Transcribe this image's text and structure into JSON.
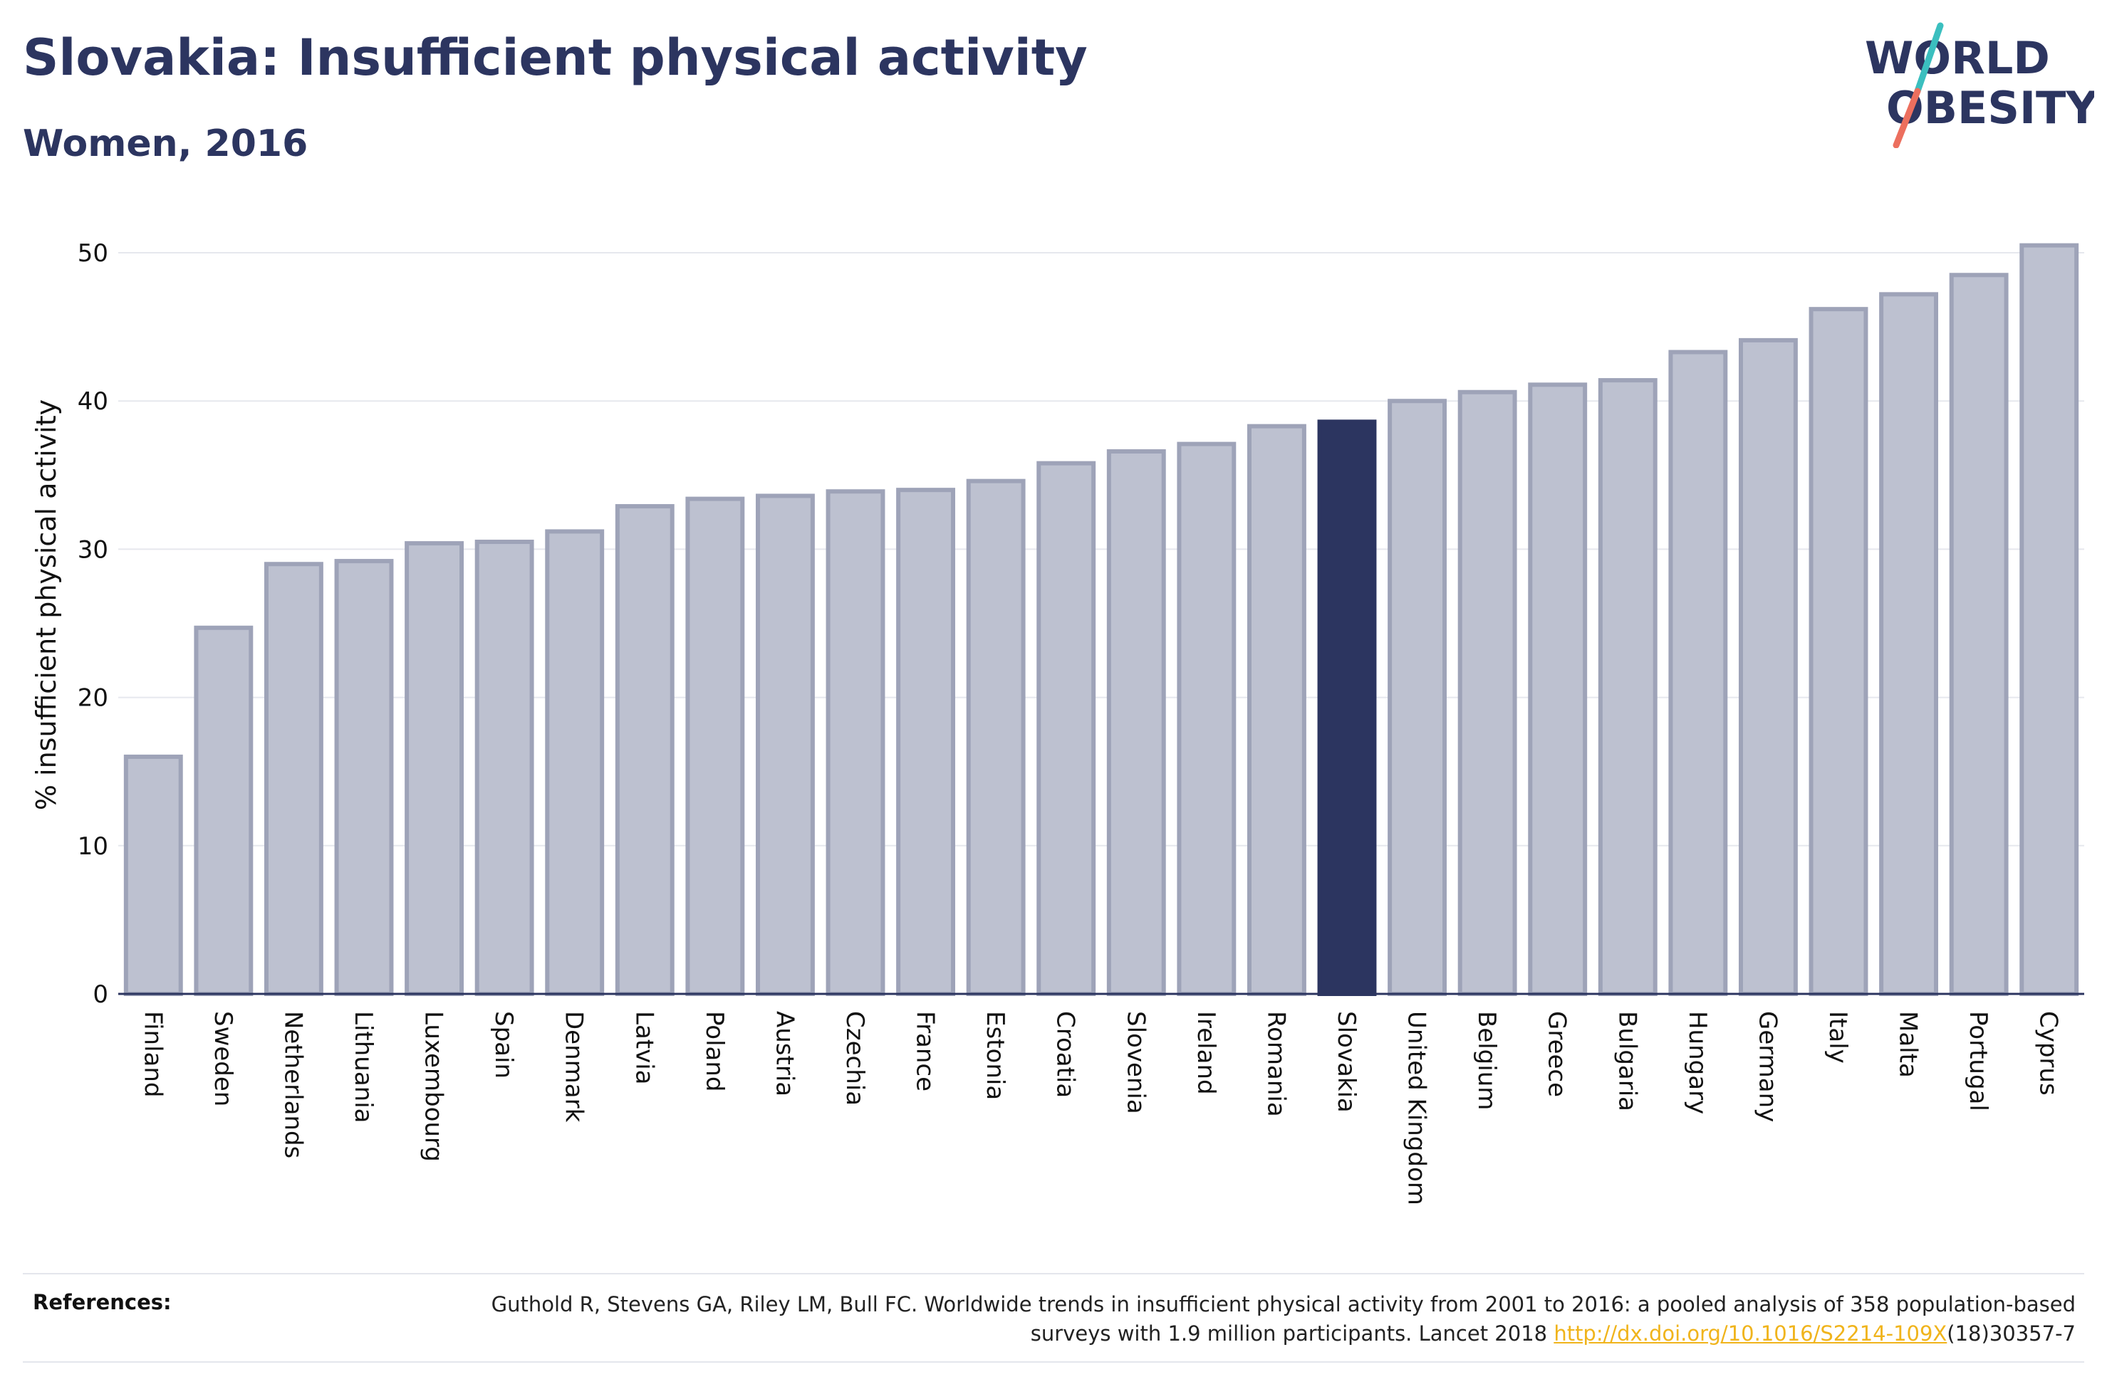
{
  "header": {
    "title": "Slovakia: Insufficient physical activity",
    "subtitle": "Women, 2016"
  },
  "logo": {
    "line1": "WORLD",
    "line2": "OBESITY"
  },
  "colors": {
    "bar": "#bdc1d0",
    "bar_stroke": "#9ea3b8",
    "highlight": "#2c3560",
    "grid": "#e6e8ee",
    "axis": "#2c3560",
    "link": "#f0b41c",
    "logo_teal": "#3bbfbf",
    "logo_coral": "#ec6f5e"
  },
  "chart_data": {
    "type": "bar",
    "ylabel": "% insufficient physical activity",
    "xlabel": "",
    "ylim": [
      0,
      52.5
    ],
    "yticks": [
      0,
      10,
      20,
      30,
      40,
      50
    ],
    "grid": true,
    "highlight": "Slovakia",
    "categories": [
      "Finland",
      "Sweden",
      "Netherlands",
      "Lithuania",
      "Luxembourg",
      "Spain",
      "Denmark",
      "Latvia",
      "Poland",
      "Austria",
      "Czechia",
      "France",
      "Estonia",
      "Croatia",
      "Slovenia",
      "Ireland",
      "Romania",
      "Slovakia",
      "United Kingdom",
      "Belgium",
      "Greece",
      "Bulgaria",
      "Hungary",
      "Germany",
      "Italy",
      "Malta",
      "Portugal",
      "Cyprus"
    ],
    "values": [
      16.0,
      24.7,
      29.0,
      29.2,
      30.4,
      30.5,
      31.2,
      32.9,
      33.4,
      33.6,
      33.9,
      34.0,
      34.6,
      35.8,
      36.6,
      37.1,
      38.3,
      38.6,
      40.0,
      40.6,
      41.1,
      41.4,
      43.3,
      44.1,
      46.2,
      47.2,
      48.5,
      50.5
    ]
  },
  "references": {
    "label": "References:",
    "text_before_link": "Guthold R, Stevens GA, Riley LM, Bull FC. Worldwide trends in insufficient physical activity from 2001 to 2016: a pooled analysis of 358 population-based surveys with 1.9 million participants. Lancet 2018 ",
    "link_text": "http://dx.doi.org/10.1016/S2214-109X",
    "text_after_link": "(18)30357-7"
  }
}
